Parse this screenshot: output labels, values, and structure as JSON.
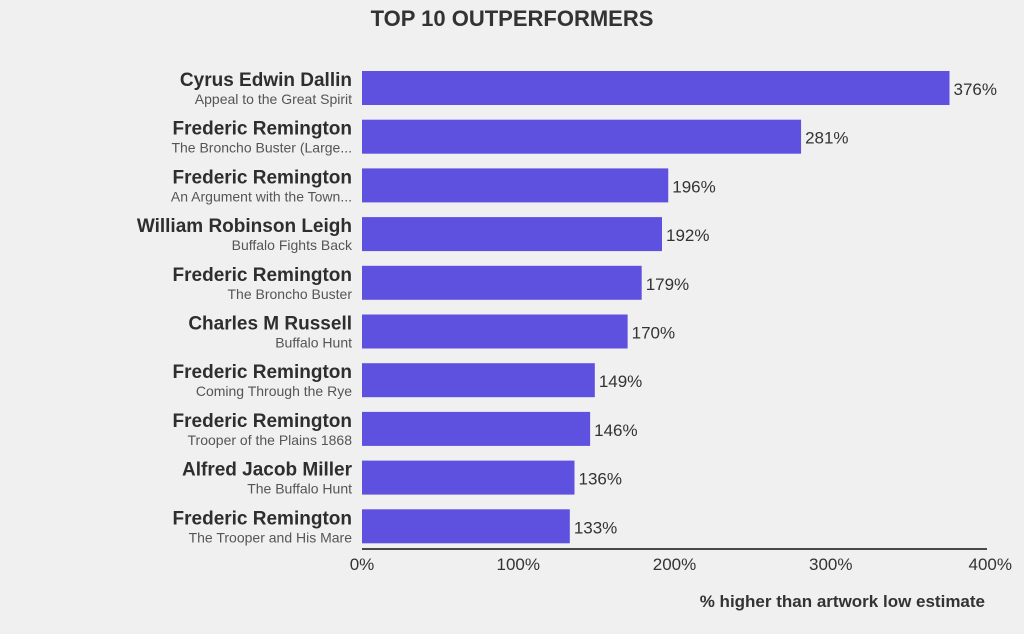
{
  "chart_data": {
    "type": "bar",
    "orientation": "horizontal",
    "title": "TOP 10 OUTPERFORMERS",
    "xlabel": "% higher than artwork low estimate",
    "ylabel": "",
    "xlim": [
      0,
      400
    ],
    "ticks": [
      0,
      100,
      200,
      300,
      400
    ],
    "tick_labels": [
      "0%",
      "100%",
      "200%",
      "300%",
      "400%"
    ],
    "grid": false,
    "bar_color": "#5f51e0",
    "bars": [
      {
        "artist": "Cyrus Edwin Dallin",
        "work": "Appeal to the Great Spirit",
        "value": 376,
        "label": "376%"
      },
      {
        "artist": "Frederic Remington",
        "work": "The Broncho Buster (Large...",
        "value": 281,
        "label": "281%"
      },
      {
        "artist": "Frederic Remington",
        "work": "An Argument with the Town...",
        "value": 196,
        "label": "196%"
      },
      {
        "artist": "William Robinson Leigh",
        "work": "Buffalo Fights Back",
        "value": 192,
        "label": "192%"
      },
      {
        "artist": "Frederic Remington",
        "work": "The Broncho Buster",
        "value": 179,
        "label": "179%"
      },
      {
        "artist": "Charles M Russell",
        "work": "Buffalo Hunt",
        "value": 170,
        "label": "170%"
      },
      {
        "artist": "Frederic Remington",
        "work": "Coming Through the Rye",
        "value": 149,
        "label": "149%"
      },
      {
        "artist": "Frederic Remington",
        "work": "Trooper of the Plains 1868",
        "value": 146,
        "label": "146%"
      },
      {
        "artist": "Alfred Jacob Miller",
        "work": "The Buffalo Hunt",
        "value": 136,
        "label": "136%"
      },
      {
        "artist": "Frederic Remington",
        "work": "The Trooper and His Mare",
        "value": 133,
        "label": "133%"
      }
    ]
  }
}
